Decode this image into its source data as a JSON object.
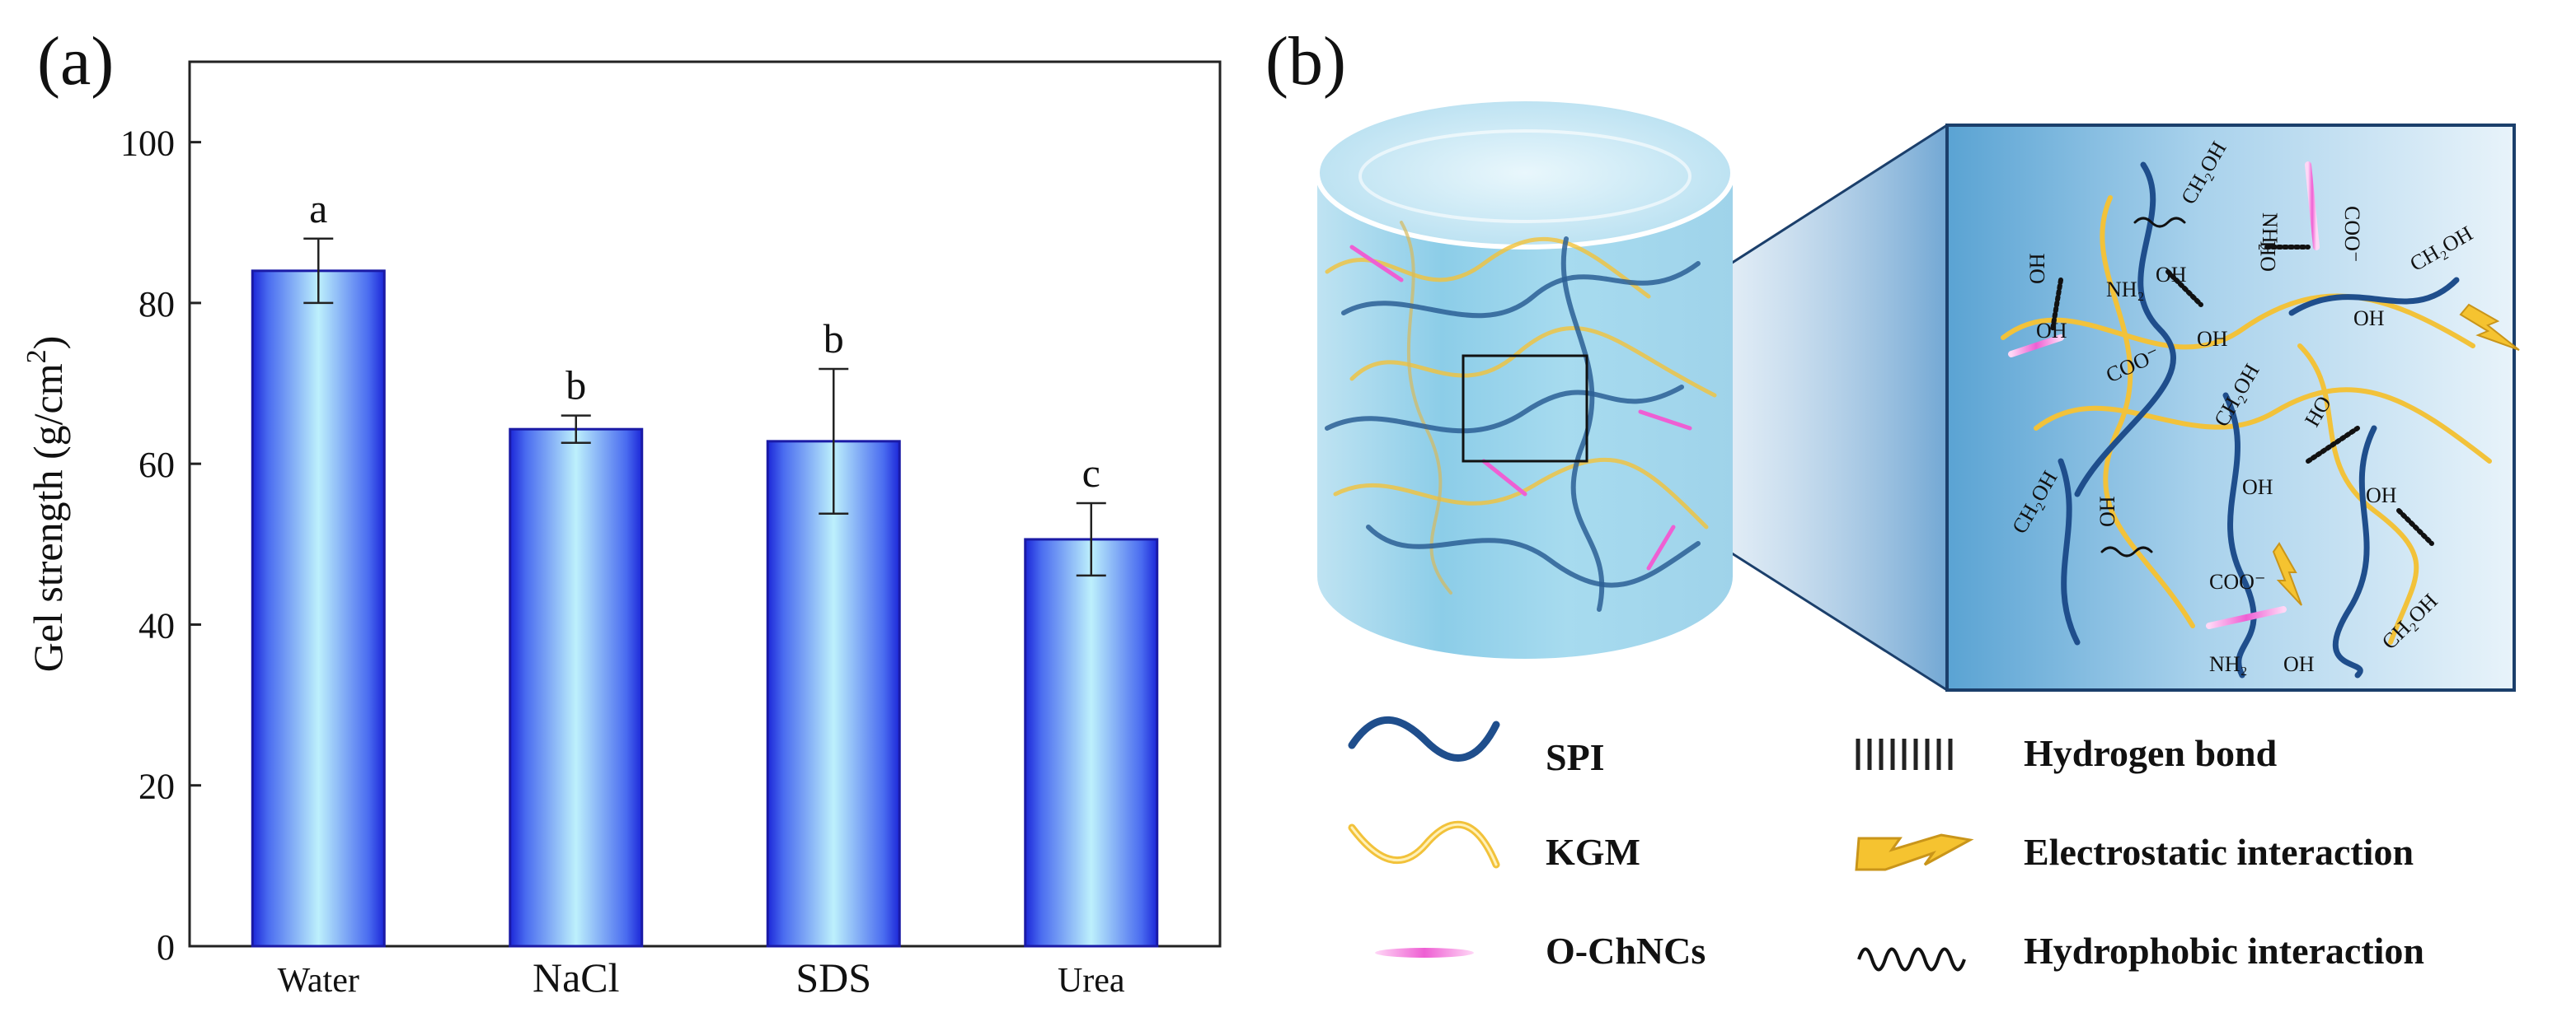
{
  "panel_labels": {
    "a": "(a)",
    "b": "(b)"
  },
  "chart_data": {
    "type": "bar",
    "title": "",
    "xlabel": "",
    "ylabel": "Gel strength (g/cm",
    "ylabel_superscript": "2",
    "ylabel_close": ")",
    "categories": [
      "Water",
      "NaCl",
      "SDS",
      "Urea"
    ],
    "values": [
      84.0,
      64.3,
      62.8,
      50.6
    ],
    "errors": [
      4.0,
      1.7,
      9.0,
      4.5
    ],
    "significance": [
      "a",
      "b",
      "b",
      "c"
    ],
    "ylim": [
      0,
      110
    ],
    "yticks": [
      0,
      20,
      40,
      60,
      80,
      100
    ],
    "grid": false,
    "bar_colors": {
      "edge": "#1a1aa6",
      "center": "#b5ecfb",
      "side": "#2330e0"
    }
  },
  "schematic": {
    "zoom_labels": {
      "ch2oh": "CH₂OH",
      "oh": "OH",
      "ho": "HO",
      "nh2": "NH₂",
      "coo": "COO⁻"
    },
    "legend": [
      {
        "label": "SPI",
        "icon": "blue-wave-icon",
        "color": "#1f4e8c"
      },
      {
        "label": "KGM",
        "icon": "yellow-wave-icon",
        "color": "#f2c23a"
      },
      {
        "label": "O-ChNCs",
        "icon": "pink-rod-icon",
        "color": "#ee5fd3"
      },
      {
        "label": "Hydrogen bond",
        "icon": "hydrogen-bond-icon",
        "color": "#222222"
      },
      {
        "label": "Electrostatic interaction",
        "icon": "lightning-icon",
        "color": "#f5c330"
      },
      {
        "label": "Hydrophobic interaction",
        "icon": "squiggle-icon",
        "color": "#111111"
      }
    ]
  }
}
